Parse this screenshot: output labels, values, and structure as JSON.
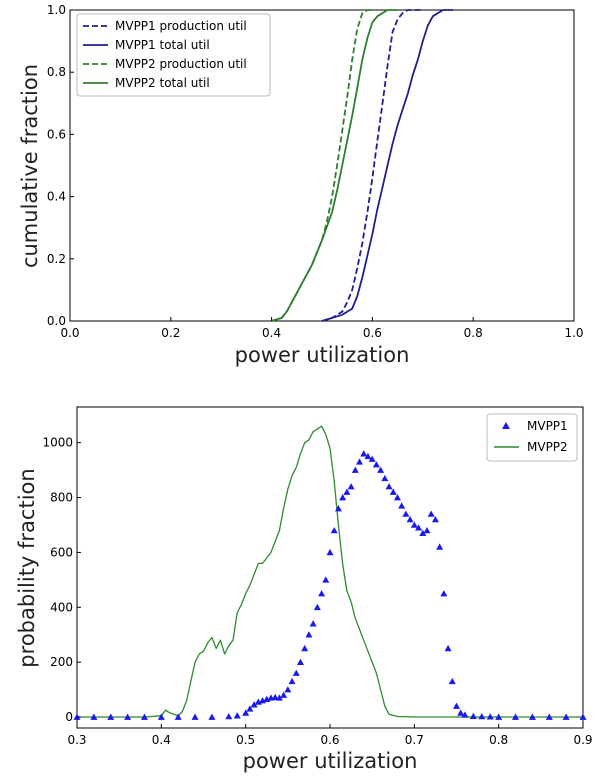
{
  "chart_data": [
    {
      "type": "line",
      "xlabel": "power utilization",
      "ylabel": "cumulative fraction",
      "xlim": [
        0.0,
        1.0
      ],
      "ylim": [
        0.0,
        1.0
      ],
      "xticks": [
        "0.0",
        "0.2",
        "0.4",
        "0.6",
        "0.8",
        "1.0"
      ],
      "yticks": [
        "0.0",
        "0.2",
        "0.4",
        "0.6",
        "0.8",
        "1.0"
      ],
      "grid": false,
      "legend": "top-left",
      "series": [
        {
          "name": "MVPP1 production util",
          "color": "#1f1f8f",
          "style": "dashed",
          "x": [
            0.5,
            0.52,
            0.54,
            0.55,
            0.56,
            0.57,
            0.58,
            0.59,
            0.6,
            0.61,
            0.62,
            0.63,
            0.64,
            0.65,
            0.66,
            0.67,
            0.68,
            0.69,
            0.7
          ],
          "y": [
            0.0,
            0.01,
            0.03,
            0.06,
            0.1,
            0.17,
            0.25,
            0.35,
            0.46,
            0.58,
            0.7,
            0.82,
            0.93,
            0.97,
            0.99,
            1.0,
            1.0,
            1.0,
            1.0
          ]
        },
        {
          "name": "MVPP1 total util",
          "color": "#1f1f8f",
          "style": "solid",
          "x": [
            0.5,
            0.52,
            0.54,
            0.56,
            0.57,
            0.58,
            0.59,
            0.6,
            0.61,
            0.62,
            0.63,
            0.64,
            0.65,
            0.66,
            0.67,
            0.68,
            0.69,
            0.7,
            0.71,
            0.72,
            0.73,
            0.74,
            0.75,
            0.76
          ],
          "y": [
            0.0,
            0.01,
            0.02,
            0.04,
            0.08,
            0.14,
            0.21,
            0.28,
            0.36,
            0.43,
            0.5,
            0.57,
            0.63,
            0.68,
            0.73,
            0.79,
            0.84,
            0.9,
            0.95,
            0.98,
            0.99,
            1.0,
            1.0,
            1.0
          ]
        },
        {
          "name": "MVPP2 production util",
          "color": "#2e7d2e",
          "style": "dashed",
          "x": [
            0.4,
            0.42,
            0.43,
            0.44,
            0.46,
            0.48,
            0.5,
            0.51,
            0.52,
            0.53,
            0.54,
            0.55,
            0.56,
            0.57,
            0.58,
            0.59,
            0.6
          ],
          "y": [
            0.0,
            0.01,
            0.03,
            0.06,
            0.12,
            0.18,
            0.26,
            0.32,
            0.4,
            0.5,
            0.61,
            0.72,
            0.84,
            0.94,
            0.99,
            1.0,
            1.0
          ]
        },
        {
          "name": "MVPP2 total util",
          "color": "#2e7d2e",
          "style": "solid",
          "x": [
            0.4,
            0.42,
            0.43,
            0.44,
            0.46,
            0.48,
            0.5,
            0.52,
            0.53,
            0.54,
            0.55,
            0.56,
            0.57,
            0.58,
            0.59,
            0.6,
            0.61,
            0.62,
            0.63,
            0.64,
            0.65
          ],
          "y": [
            0.0,
            0.01,
            0.03,
            0.06,
            0.12,
            0.18,
            0.26,
            0.35,
            0.42,
            0.5,
            0.58,
            0.66,
            0.75,
            0.84,
            0.91,
            0.96,
            0.98,
            0.99,
            1.0,
            1.0,
            1.0
          ]
        }
      ]
    },
    {
      "type": "line",
      "xlabel": "power utilization",
      "ylabel": "probability fraction",
      "xlim": [
        0.3,
        0.9
      ],
      "ylim": [
        -40,
        1130
      ],
      "xticks": [
        "0.3",
        "0.4",
        "0.5",
        "0.6",
        "0.7",
        "0.8",
        "0.9"
      ],
      "yticks": [
        "0",
        "200",
        "400",
        "600",
        "800",
        "1000"
      ],
      "grid": false,
      "legend": "top-right",
      "series": [
        {
          "name": "MVPP1",
          "color": "#1a1aee",
          "marker": "triangle",
          "x": [
            0.3,
            0.32,
            0.34,
            0.36,
            0.38,
            0.4,
            0.42,
            0.44,
            0.46,
            0.48,
            0.49,
            0.5,
            0.505,
            0.51,
            0.515,
            0.52,
            0.525,
            0.53,
            0.535,
            0.54,
            0.545,
            0.55,
            0.555,
            0.56,
            0.565,
            0.57,
            0.575,
            0.58,
            0.585,
            0.59,
            0.595,
            0.6,
            0.605,
            0.61,
            0.615,
            0.62,
            0.625,
            0.63,
            0.635,
            0.64,
            0.645,
            0.65,
            0.655,
            0.66,
            0.665,
            0.67,
            0.675,
            0.68,
            0.685,
            0.69,
            0.695,
            0.7,
            0.705,
            0.71,
            0.715,
            0.72,
            0.725,
            0.73,
            0.735,
            0.74,
            0.745,
            0.75,
            0.755,
            0.76,
            0.77,
            0.78,
            0.79,
            0.8,
            0.82,
            0.84,
            0.86,
            0.88,
            0.9
          ],
          "y": [
            0,
            0,
            0,
            0,
            0,
            0,
            0,
            0,
            0,
            2,
            5,
            15,
            30,
            45,
            55,
            60,
            65,
            70,
            72,
            70,
            80,
            100,
            130,
            160,
            200,
            250,
            300,
            340,
            400,
            450,
            500,
            600,
            680,
            760,
            800,
            820,
            840,
            900,
            930,
            960,
            950,
            940,
            920,
            900,
            870,
            840,
            820,
            800,
            770,
            740,
            720,
            700,
            690,
            670,
            680,
            740,
            720,
            620,
            450,
            250,
            130,
            40,
            15,
            8,
            3,
            2,
            1,
            0,
            0,
            0,
            0,
            0,
            0
          ]
        },
        {
          "name": "MVPP2",
          "color": "#2e8b2e",
          "marker": "line",
          "x": [
            0.3,
            0.34,
            0.38,
            0.4,
            0.405,
            0.41,
            0.415,
            0.42,
            0.425,
            0.43,
            0.435,
            0.44,
            0.445,
            0.45,
            0.455,
            0.46,
            0.465,
            0.47,
            0.475,
            0.48,
            0.485,
            0.49,
            0.495,
            0.5,
            0.505,
            0.51,
            0.515,
            0.52,
            0.525,
            0.53,
            0.535,
            0.54,
            0.545,
            0.55,
            0.555,
            0.56,
            0.565,
            0.57,
            0.575,
            0.58,
            0.585,
            0.59,
            0.595,
            0.6,
            0.605,
            0.61,
            0.615,
            0.62,
            0.625,
            0.63,
            0.635,
            0.64,
            0.645,
            0.65,
            0.655,
            0.66,
            0.665,
            0.67,
            0.68,
            0.7,
            0.75,
            0.8,
            0.9
          ],
          "y": [
            0,
            0,
            0,
            5,
            25,
            15,
            10,
            5,
            20,
            60,
            130,
            200,
            230,
            240,
            270,
            290,
            250,
            280,
            230,
            260,
            280,
            380,
            410,
            450,
            480,
            520,
            560,
            560,
            580,
            600,
            640,
            680,
            760,
            830,
            880,
            910,
            960,
            1000,
            1010,
            1040,
            1050,
            1060,
            1030,
            980,
            860,
            700,
            560,
            460,
            420,
            360,
            320,
            280,
            240,
            200,
            160,
            100,
            40,
            10,
            2,
            0,
            0,
            0,
            0
          ]
        }
      ]
    }
  ]
}
